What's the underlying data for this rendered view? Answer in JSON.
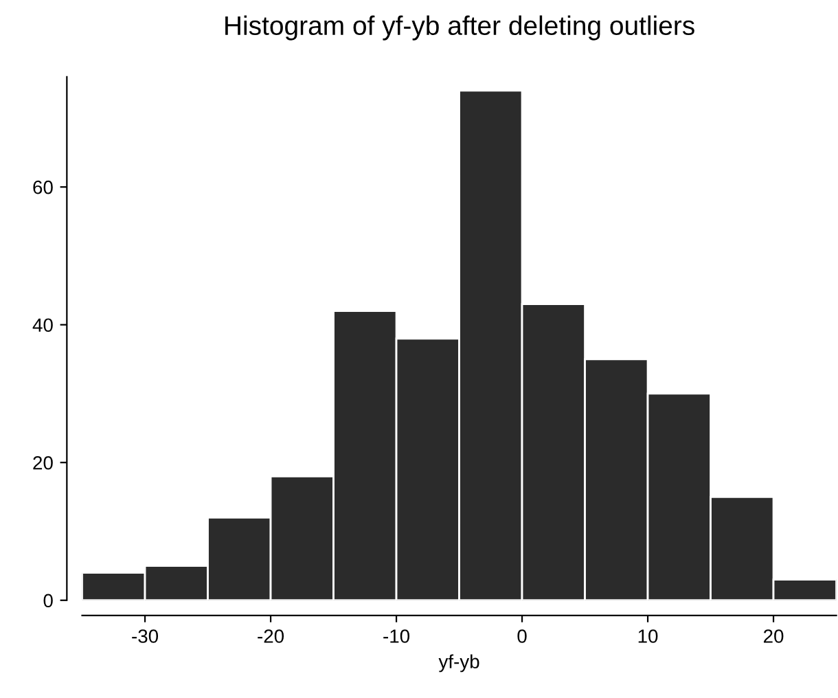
{
  "chart_data": {
    "type": "histogram",
    "title": "Histogram of yf-yb after deleting outliers",
    "xlabel": "yf-yb",
    "bins": [
      -35,
      -30,
      -25,
      -20,
      -15,
      -10,
      -5,
      0,
      5,
      10,
      15,
      20,
      25
    ],
    "values": [
      4,
      5,
      12,
      18,
      42,
      38,
      74,
      43,
      35,
      30,
      15,
      3
    ],
    "color": "#2b2b2b",
    "xlim": [
      -35,
      25
    ],
    "ylim": [
      0,
      76
    ],
    "xticks": [
      -30,
      -20,
      -10,
      0,
      10,
      20
    ],
    "yticks": [
      0,
      20,
      40,
      60
    ],
    "grid": false
  }
}
